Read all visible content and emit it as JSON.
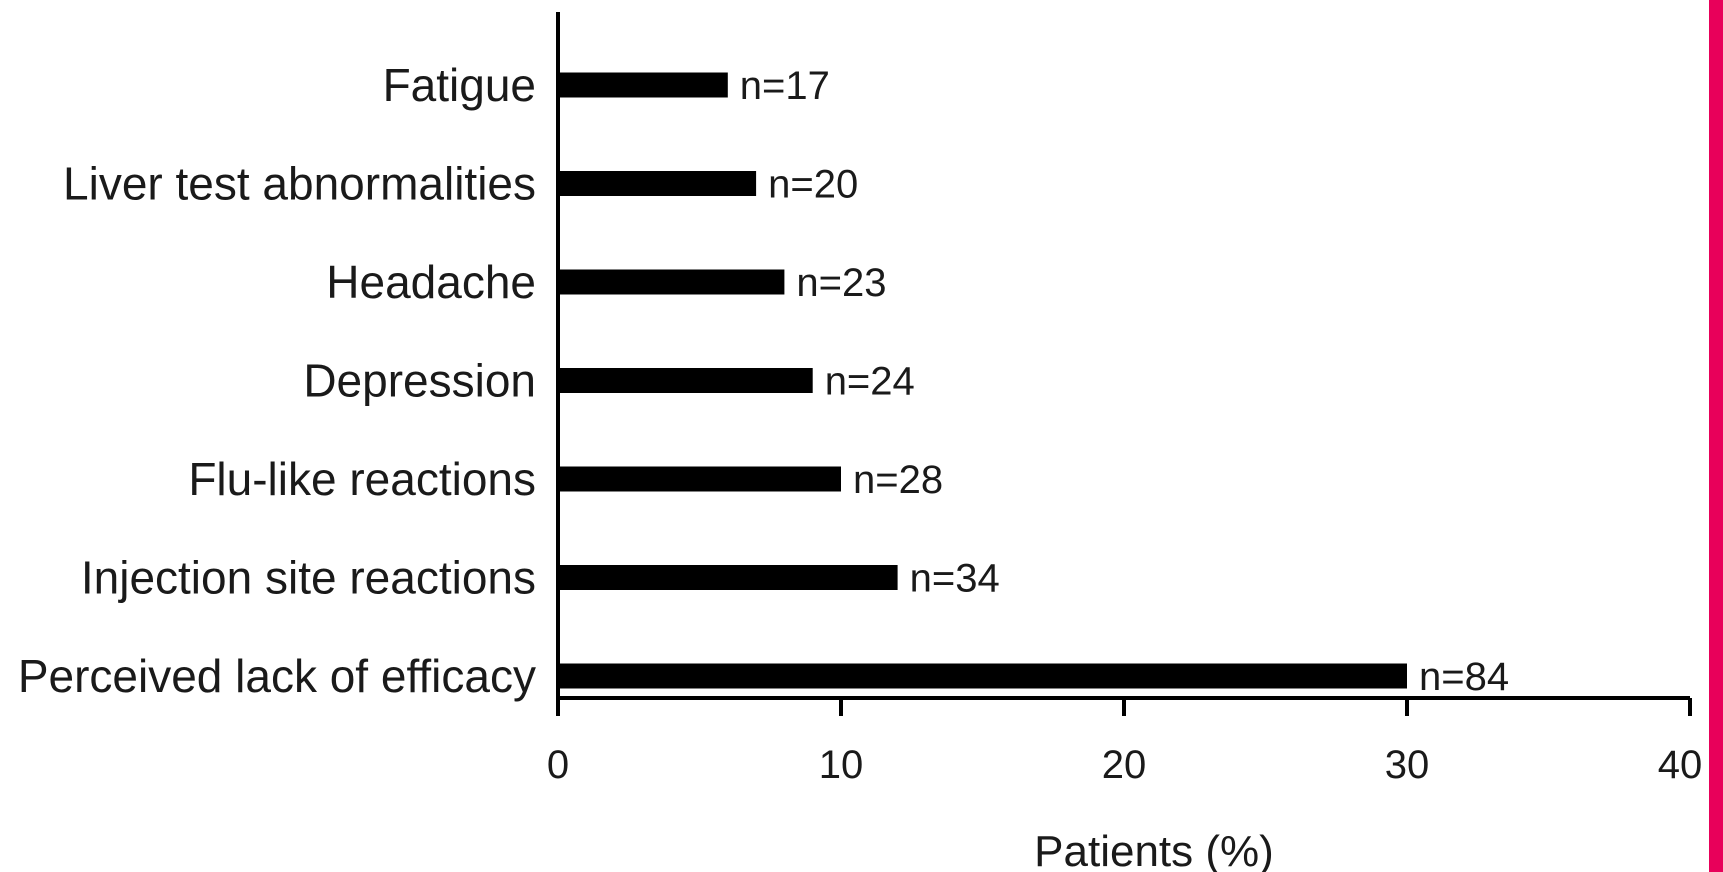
{
  "chart_data": {
    "type": "bar",
    "orientation": "horizontal",
    "categories": [
      "Fatigue",
      "Liver test abnormalities",
      "Headache",
      "Depression",
      "Flu-like reactions",
      "Injection site reactions",
      "Perceived lack of efficacy"
    ],
    "values": [
      6,
      7,
      8,
      9,
      10,
      12,
      30
    ],
    "data_labels": [
      "n=17",
      "n=20",
      "n=23",
      "n=24",
      "n=28",
      "n=34",
      "n=84"
    ],
    "xlabel": "Patients (%)",
    "ylabel": "",
    "xlim": [
      0,
      40
    ],
    "xticks": [
      "0",
      "10",
      "20",
      "30",
      "40"
    ],
    "grid": false,
    "bar_color": "#000000"
  },
  "decor": {
    "edge_strip_color": "#e8005a"
  }
}
